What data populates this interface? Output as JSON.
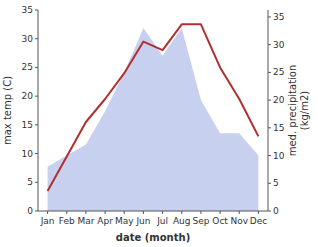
{
  "chart_data": {
    "type": "line",
    "xlabel": "date (month)",
    "ylabel": "max temp (C)",
    "y2label": "med. precipitation\n(kg/m2)",
    "categories": [
      "Jan",
      "Feb",
      "Mar",
      "Apr",
      "May",
      "Jun",
      "Jul",
      "Aug",
      "Sep",
      "Oct",
      "Nov",
      "Dec"
    ],
    "series": [
      {
        "type": "area",
        "axis": "y2",
        "color": "#c8d0f0",
        "values": [
          8.0,
          10.0,
          12.0,
          18.0,
          25.0,
          33.0,
          28.0,
          33.0,
          20.0,
          14.0,
          14.0,
          10.0
        ]
      },
      {
        "type": "line",
        "color": "#b03030",
        "values": [
          3.5,
          9.5,
          15.5,
          19.5,
          24.0,
          29.5,
          28.0,
          32.5,
          32.5,
          25.0,
          19.5,
          13.0
        ]
      }
    ],
    "ylim": [
      0,
      35
    ],
    "yticks": [
      0,
      5,
      10,
      15,
      20,
      25,
      30,
      35
    ],
    "y2lim": [
      0,
      36.25
    ],
    "y2ticks": [
      0,
      5,
      10,
      15,
      20,
      25,
      30,
      35
    ]
  }
}
